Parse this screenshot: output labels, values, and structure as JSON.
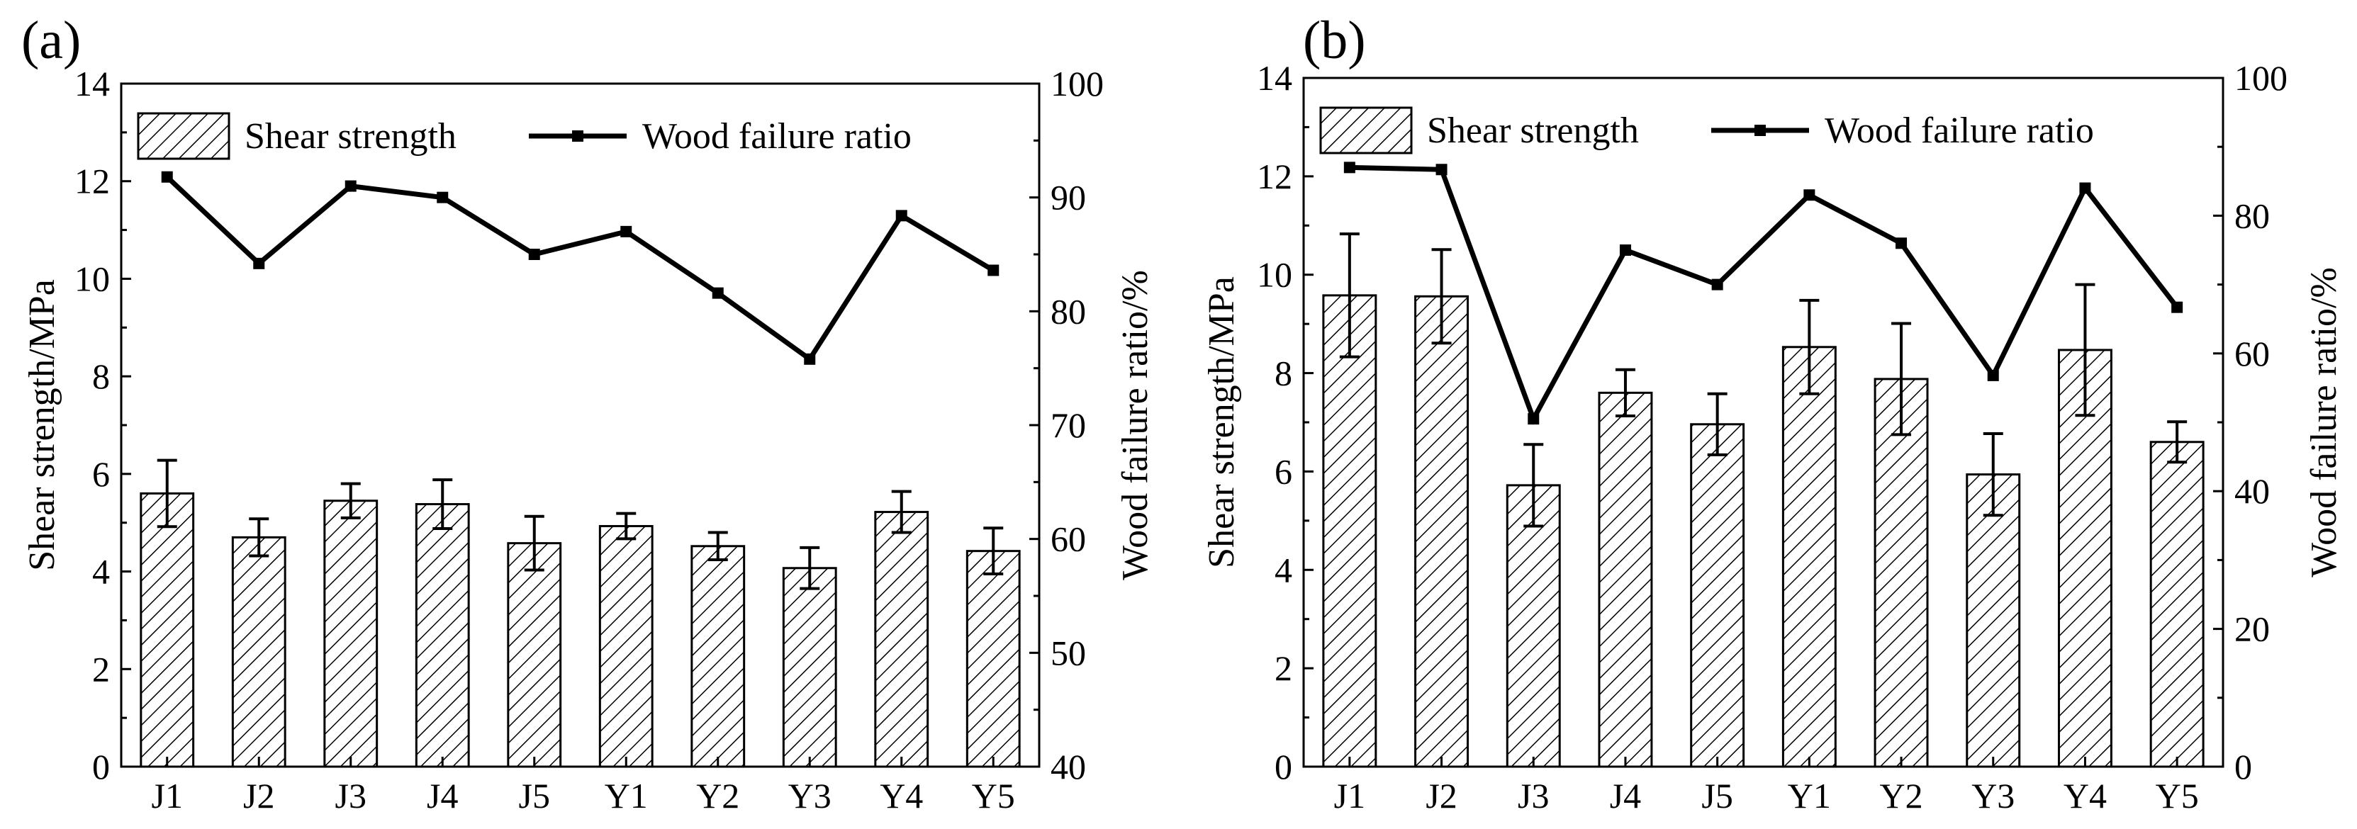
{
  "chart_data": [
    {
      "type": "bar",
      "panel_label": "(a)",
      "categories": [
        "J1",
        "J2",
        "J3",
        "J4",
        "J5",
        "Y1",
        "Y2",
        "Y3",
        "Y4",
        "Y5"
      ],
      "ylabel": "Shear strength/MPa",
      "ylim": [
        0,
        14
      ],
      "yticks": [
        "0",
        "2",
        "4",
        "6",
        "8",
        "10",
        "12",
        "14"
      ],
      "y2label": "Wood failure ratio/%",
      "y2lim": [
        40,
        100
      ],
      "y2ticks": [
        "40",
        "50",
        "60",
        "70",
        "80",
        "90",
        "100"
      ],
      "legend_position": "top",
      "series": [
        {
          "name": "Shear strength",
          "kind": "bar",
          "axis": "left",
          "values": [
            5.6,
            4.7,
            5.45,
            5.38,
            4.58,
            4.93,
            4.52,
            4.07,
            5.22,
            4.42
          ],
          "errors": [
            0.68,
            0.38,
            0.35,
            0.5,
            0.55,
            0.26,
            0.28,
            0.42,
            0.42,
            0.47
          ]
        },
        {
          "name": "Wood failure ratio",
          "kind": "line",
          "axis": "right",
          "values": [
            91.8,
            84.2,
            91.0,
            90.0,
            85.0,
            87.0,
            81.6,
            75.8,
            88.4,
            83.6
          ]
        }
      ]
    },
    {
      "type": "bar",
      "panel_label": "(b)",
      "categories": [
        "J1",
        "J2",
        "J3",
        "J4",
        "J5",
        "Y1",
        "Y2",
        "Y3",
        "Y4",
        "Y5"
      ],
      "ylabel": "Shear strength/MPa",
      "ylim": [
        0,
        14
      ],
      "yticks": [
        "0",
        "2",
        "4",
        "6",
        "8",
        "10",
        "12",
        "14"
      ],
      "y2label": "Wood failure ratio/%",
      "y2lim": [
        0,
        100
      ],
      "y2ticks": [
        "0",
        "20",
        "40",
        "60",
        "80",
        "100"
      ],
      "legend_position": "top",
      "series": [
        {
          "name": "Shear strength",
          "kind": "bar",
          "axis": "left",
          "values": [
            9.58,
            9.56,
            5.72,
            7.6,
            6.96,
            8.53,
            7.88,
            5.94,
            8.47,
            6.6
          ],
          "errors": [
            1.25,
            0.95,
            0.83,
            0.47,
            0.62,
            0.95,
            1.13,
            0.83,
            1.33,
            0.41
          ]
        },
        {
          "name": "Wood failure ratio",
          "kind": "line",
          "axis": "right",
          "values": [
            87.0,
            86.7,
            50.5,
            75.0,
            70.0,
            83.0,
            76.0,
            56.8,
            84.0,
            66.7
          ]
        }
      ]
    }
  ]
}
